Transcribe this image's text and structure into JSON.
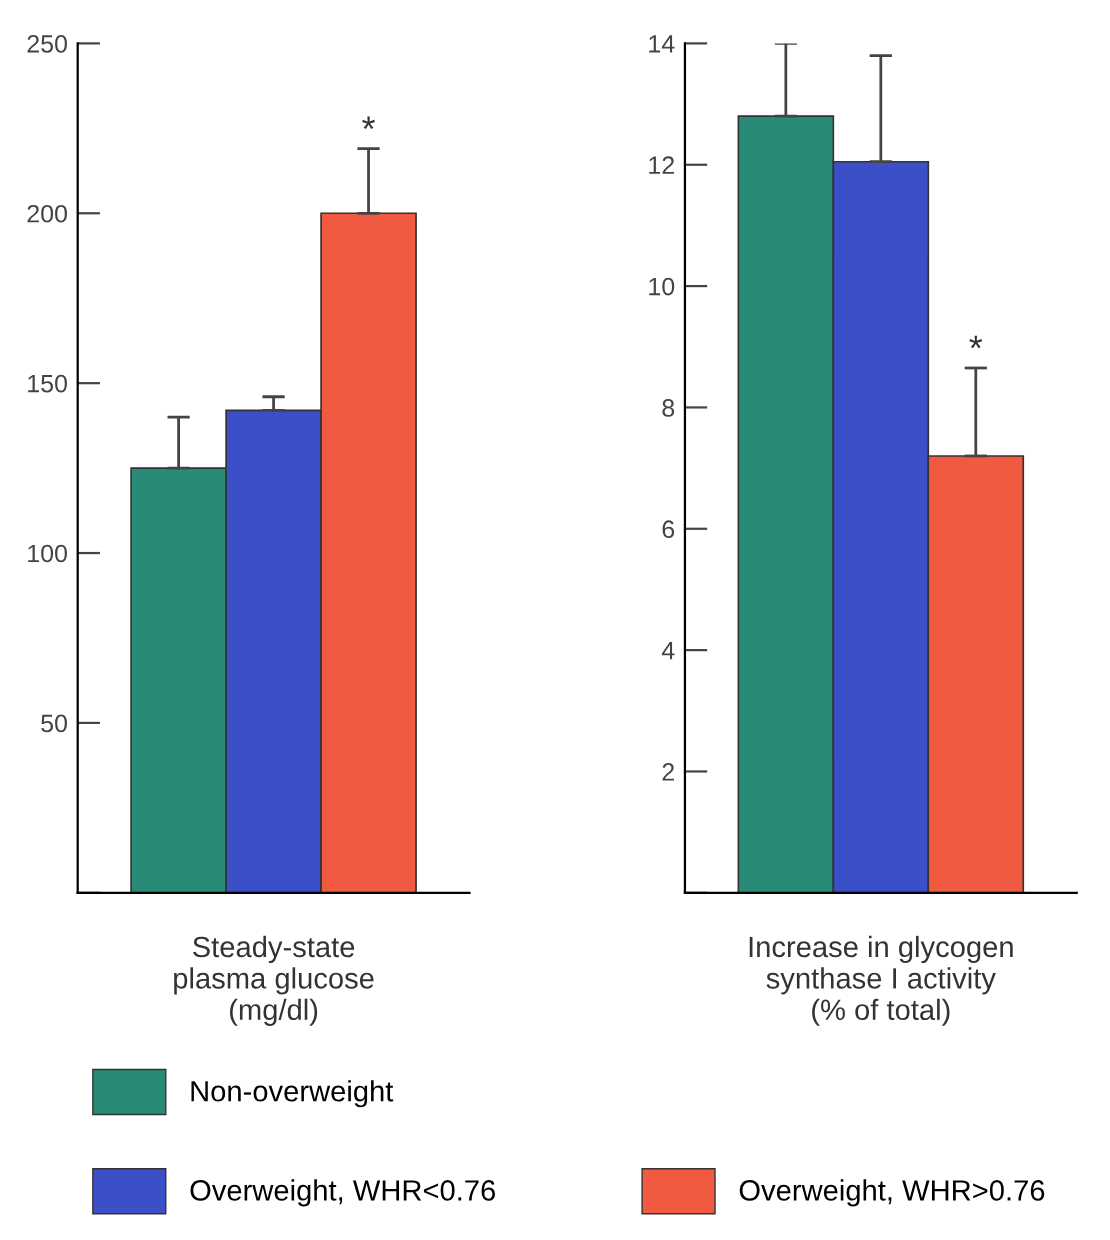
{
  "chart_data": [
    {
      "type": "bar",
      "xlabel": "Steady-state\nplasma glucose\n(mg/dl)",
      "categories": [
        null
      ],
      "ylim": [
        0,
        250
      ],
      "yticks": [
        {
          "value": 0,
          "label": null
        },
        50,
        100,
        150,
        200,
        250
      ],
      "legend": "bottom",
      "series": [
        {
          "name": "Non-overweight",
          "color": "#2a8a78",
          "values": [
            125
          ],
          "errors": [
            [
              125,
              140
            ]
          ]
        },
        {
          "name": "Overweight, WHR<0.76",
          "color": "#3a4fc8",
          "values": [
            142
          ],
          "errors": [
            [
              142,
              146
            ]
          ]
        },
        {
          "name": "Overweight, WHR>0.76",
          "color": "#f05a40",
          "values": [
            200
          ],
          "errors": [
            [
              200,
              219
            ]
          ],
          "value_labels": [
            "*"
          ]
        }
      ]
    },
    {
      "type": "bar",
      "xlabel": "Increase in glycogen\nsynthase I activity\n(% of total)",
      "categories": [
        null
      ],
      "ylim": [
        0,
        14
      ],
      "yticks": [
        {
          "value": 0,
          "label": null
        },
        2,
        4,
        6,
        8,
        10,
        12,
        14
      ],
      "series": [
        {
          "color": "#2a8a78",
          "values": [
            12.8
          ],
          "errors": [
            [
              12.8,
              14.0
            ]
          ]
        },
        {
          "color": "#3a4fc8",
          "values": [
            12.05
          ],
          "errors": [
            [
              12.05,
              13.8
            ]
          ]
        },
        {
          "color": "#f05a40",
          "values": [
            7.2
          ],
          "errors": [
            [
              7.2,
              8.65
            ]
          ],
          "value_labels": [
            "*"
          ]
        }
      ]
    }
  ]
}
